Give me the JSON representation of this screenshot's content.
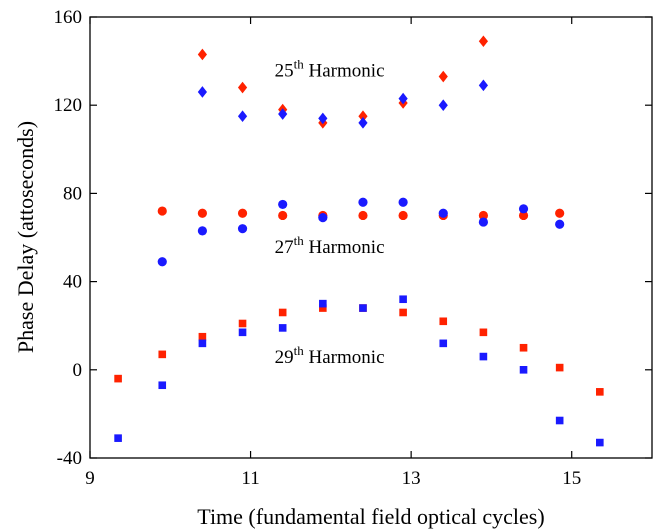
{
  "chart_data": {
    "type": "scatter",
    "title": "",
    "xlabel": "Time (fundamental field optical cycles)",
    "ylabel": "Phase Delay (attoseconds)",
    "xlim": [
      9,
      16
    ],
    "ylim": [
      -40,
      160
    ],
    "xticks": [
      9,
      11,
      13,
      15
    ],
    "yticks": [
      -40,
      0,
      40,
      80,
      120,
      160
    ],
    "grid": false,
    "legend": "none",
    "annotations": [
      {
        "base": "25",
        "sup": "th",
        "text": " Harmonic",
        "x": 11.3,
        "y": 133
      },
      {
        "base": "27",
        "sup": "th",
        "text": " Harmonic",
        "x": 11.3,
        "y": 53
      },
      {
        "base": "29",
        "sup": "th",
        "text": " Harmonic",
        "x": 11.3,
        "y": 3
      }
    ],
    "series": [
      {
        "color": "#ff2200",
        "marker": "diamond",
        "x": [
          10.4,
          10.9,
          11.4,
          11.9,
          12.4,
          12.9,
          13.4,
          13.9
        ],
        "y": [
          143,
          128,
          118,
          112,
          115,
          121,
          133,
          149
        ]
      },
      {
        "color": "#1a1aff",
        "marker": "diamond",
        "x": [
          10.4,
          10.9,
          11.4,
          11.9,
          12.4,
          12.9,
          13.4,
          13.9
        ],
        "y": [
          126,
          115,
          116,
          114,
          112,
          123,
          120,
          129
        ]
      },
      {
        "color": "#ff2200",
        "marker": "circle",
        "x": [
          9.9,
          10.4,
          10.9,
          11.4,
          11.9,
          12.4,
          12.9,
          13.4,
          13.9,
          14.4,
          14.85
        ],
        "y": [
          72,
          71,
          71,
          70,
          70,
          70,
          70,
          70,
          70,
          70,
          71
        ]
      },
      {
        "color": "#1a1aff",
        "marker": "circle",
        "x": [
          9.9,
          10.4,
          10.9,
          11.4,
          11.9,
          12.4,
          12.9,
          13.4,
          13.9,
          14.4,
          14.85
        ],
        "y": [
          49,
          63,
          64,
          75,
          69,
          76,
          76,
          71,
          67,
          73,
          66
        ]
      },
      {
        "color": "#ff2200",
        "marker": "square",
        "x": [
          9.35,
          9.9,
          10.4,
          10.9,
          11.4,
          11.9,
          12.4,
          12.9,
          13.4,
          13.9,
          14.4,
          14.85,
          15.35
        ],
        "y": [
          -4,
          7,
          15,
          21,
          26,
          28,
          28,
          26,
          22,
          17,
          10,
          1,
          -10
        ]
      },
      {
        "color": "#1a1aff",
        "marker": "square",
        "x": [
          9.35,
          9.9,
          10.4,
          10.9,
          11.4,
          11.9,
          12.4,
          12.9,
          13.4,
          13.9,
          14.4,
          14.85,
          15.35
        ],
        "y": [
          -31,
          -7,
          12,
          17,
          19,
          30,
          28,
          32,
          12,
          6,
          0,
          -23,
          -33
        ]
      }
    ]
  }
}
